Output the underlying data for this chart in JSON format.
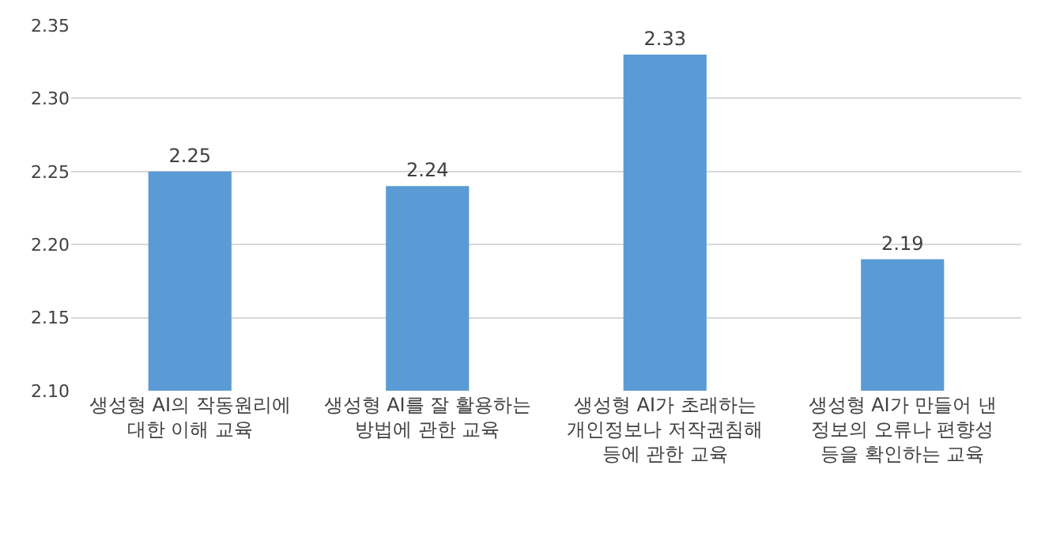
{
  "chart_data": {
    "type": "bar",
    "categories": [
      "생성형 AI의 작동원리에\n대한 이해 교육",
      "생성형 AI를 잘 활용하는\n방법에 관한 교육",
      "생성형 AI가 초래하는\n개인정보나 저작권침해\n등에 관한 교육",
      "생성형 AI가 만들어 낸\n정보의 오류나 편향성\n등을 확인하는 교육"
    ],
    "values": [
      2.25,
      2.24,
      2.33,
      2.19
    ],
    "color": "#5b9bd5",
    "data_labels": true,
    "ylim": [
      2.1,
      2.35
    ],
    "yticks": [
      {
        "value": 2.1,
        "label": "2.10"
      },
      {
        "value": 2.15,
        "label": "2.15"
      },
      {
        "value": 2.2,
        "label": "2.20"
      },
      {
        "value": 2.25,
        "label": "2.25"
      },
      {
        "value": 2.3,
        "label": "2.30"
      },
      {
        "value": 2.35,
        "label": "2.35"
      }
    ],
    "grid": "y"
  }
}
